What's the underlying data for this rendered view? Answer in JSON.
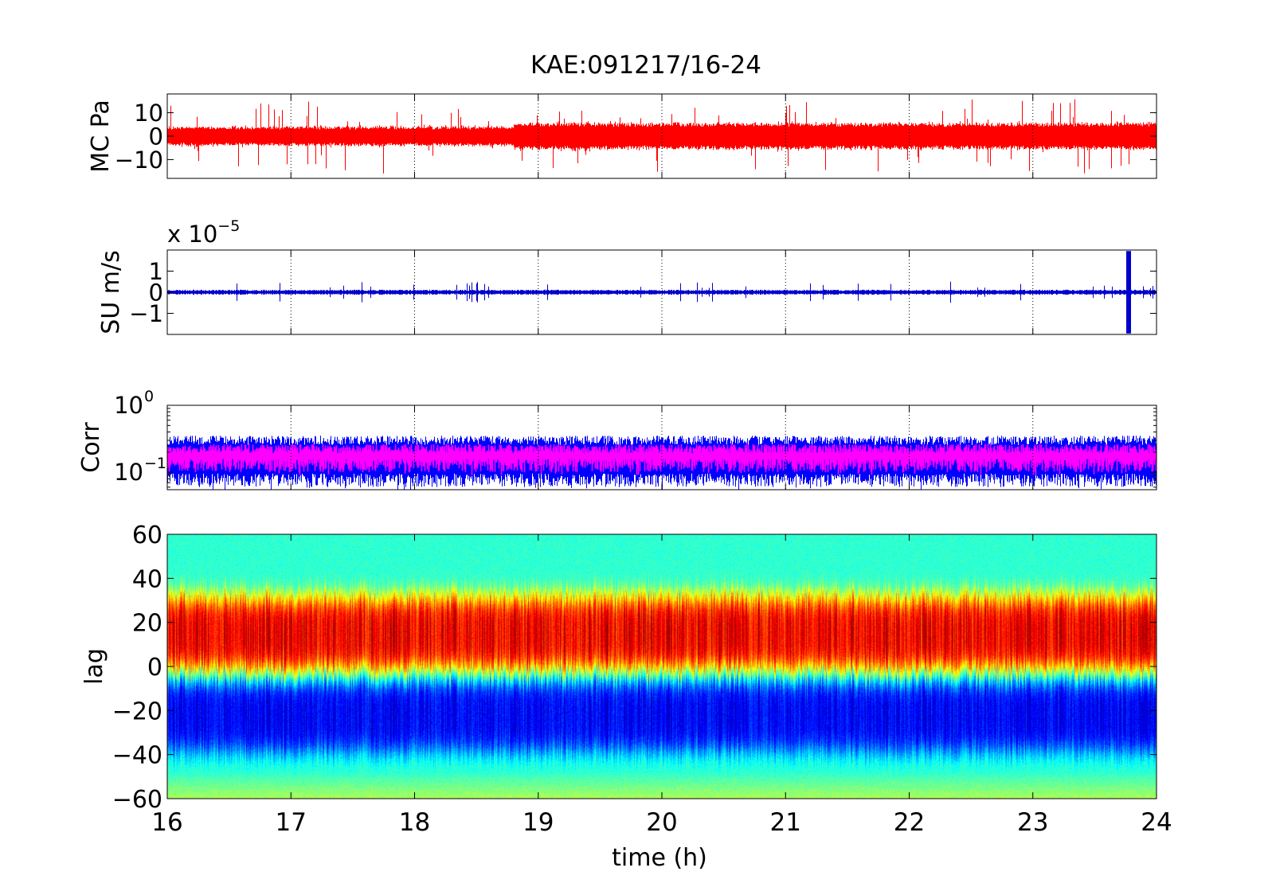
{
  "title": "KAE:091217/16-24",
  "chart_data": [
    {
      "type": "line",
      "panel": "pressure",
      "ylabel": "MC Pa",
      "xlim": [
        16,
        24
      ],
      "ylim": [
        -18,
        18
      ],
      "yticks": [
        {
          "v": 10,
          "label": "10"
        },
        {
          "v": 0,
          "label": "0"
        },
        {
          "v": -10,
          "label": "−10"
        }
      ],
      "series": [
        {
          "color": "#ff0000",
          "baseline_amplitude": 4,
          "max_spike": 16
        }
      ],
      "grid": "x-dotted",
      "xtick_labels_shown": false
    },
    {
      "type": "line",
      "panel": "velocity",
      "ylabel": "SU m/s",
      "exponent_label": {
        "base": "x 10",
        "power": "−5"
      },
      "xlim": [
        16,
        24
      ],
      "ylim": [
        -2,
        2
      ],
      "yticks": [
        {
          "v": 1,
          "label": "1"
        },
        {
          "v": 0,
          "label": "0"
        },
        {
          "v": -1,
          "label": "−1"
        }
      ],
      "series": [
        {
          "color": "#0000cc",
          "baseline_amplitude": 0.1,
          "event": {
            "t": 23.77,
            "amplitude": 1.95
          }
        }
      ],
      "grid": "x-dotted",
      "xtick_labels_shown": false
    },
    {
      "type": "line",
      "panel": "correlation",
      "ylabel": "Corr",
      "yscale": "log",
      "xlim": [
        16,
        24
      ],
      "ylim": [
        0.055,
        1.0
      ],
      "yticks": [
        {
          "v": 1,
          "base": "10",
          "power": "0"
        },
        {
          "v": 0.1,
          "base": "10",
          "power": "−1"
        }
      ],
      "series": [
        {
          "color": "#0000ff",
          "typical_range": [
            0.06,
            0.32
          ]
        },
        {
          "color": "#ff00ff",
          "typical_range": [
            0.1,
            0.24
          ]
        }
      ],
      "grid": "x-dotted",
      "xtick_labels_shown": false
    },
    {
      "type": "heatmap",
      "panel": "lag",
      "ylabel": "lag",
      "xlabel": "time (h)",
      "xlim": [
        16,
        24
      ],
      "ylim": [
        -60,
        60
      ],
      "xticks": [
        "16",
        "17",
        "18",
        "19",
        "20",
        "21",
        "22",
        "23",
        "24"
      ],
      "yticks": [
        {
          "v": 60,
          "label": "60"
        },
        {
          "v": 40,
          "label": "40"
        },
        {
          "v": 20,
          "label": "20"
        },
        {
          "v": 0,
          "label": "0"
        },
        {
          "v": -20,
          "label": "−20"
        },
        {
          "v": -40,
          "label": "−40"
        },
        {
          "v": -60,
          "label": "−60"
        }
      ],
      "colormap": "jet",
      "structure": {
        "high_band_lag": [
          0,
          30
        ],
        "low_band_lag": [
          -40,
          -5
        ]
      }
    }
  ]
}
